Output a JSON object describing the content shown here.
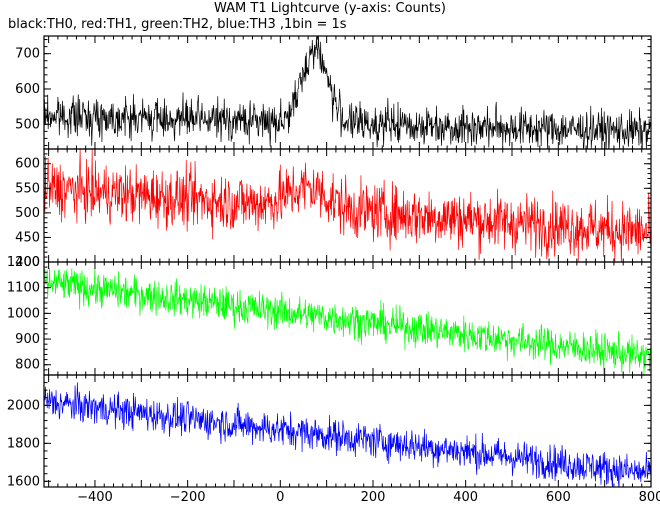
{
  "title": "WAM T1 Lightcurve (y-axis: Counts)",
  "subtitle": "black:TH0, red:TH1, green:TH2, blue:TH3 ,1bin = 1s",
  "chart_data": [
    {
      "type": "line",
      "series": [
        {
          "color": "#000000",
          "trend_start": 525,
          "trend_end": 480,
          "noise": 60,
          "flare_peak": 210,
          "flare_center": 75,
          "flare_width": 38
        }
      ],
      "x_range": [
        -510,
        800
      ],
      "ylim": [
        430,
        750
      ],
      "yticks": [
        500,
        600,
        700
      ],
      "ytick_labels": [
        "500",
        "600",
        "700"
      ]
    },
    {
      "type": "line",
      "series": [
        {
          "color": "#ff0000",
          "trend_start": 550,
          "trend_end": 460,
          "noise": 65,
          "flare_peak": 40,
          "flare_center": 60,
          "flare_width": 60
        }
      ],
      "x_range": [
        -510,
        800
      ],
      "ylim": [
        400,
        630
      ],
      "yticks": [
        400,
        450,
        500,
        550,
        600
      ],
      "ytick_labels": [
        "400",
        "450",
        "500",
        "550",
        "600"
      ]
    },
    {
      "type": "line",
      "series": [
        {
          "color": "#00ff00",
          "trend_start": 1120,
          "trend_end": 830,
          "noise": 75,
          "flare_peak": 0,
          "flare_center": 0,
          "flare_width": 1
        }
      ],
      "x_range": [
        -510,
        800
      ],
      "ylim": [
        760,
        1200
      ],
      "yticks": [
        800,
        900,
        1000,
        1100,
        1200
      ],
      "ytick_labels": [
        "800",
        "900",
        "1000",
        "1100",
        "1200"
      ]
    },
    {
      "type": "line",
      "series": [
        {
          "color": "#0000ff",
          "trend_start": 2020,
          "trend_end": 1640,
          "noise": 100,
          "flare_peak": 0,
          "flare_center": 0,
          "flare_width": 1
        }
      ],
      "x_range": [
        -510,
        800
      ],
      "ylim": [
        1570,
        2160
      ],
      "yticks": [
        1600,
        1800,
        2000
      ],
      "ytick_labels": [
        "1600",
        "1800",
        "2000"
      ]
    }
  ],
  "xticks": [
    -400,
    -200,
    0,
    200,
    400,
    600,
    800
  ],
  "xtick_labels": [
    "−400",
    "−200",
    "0",
    "200",
    "400",
    "600",
    "800"
  ]
}
